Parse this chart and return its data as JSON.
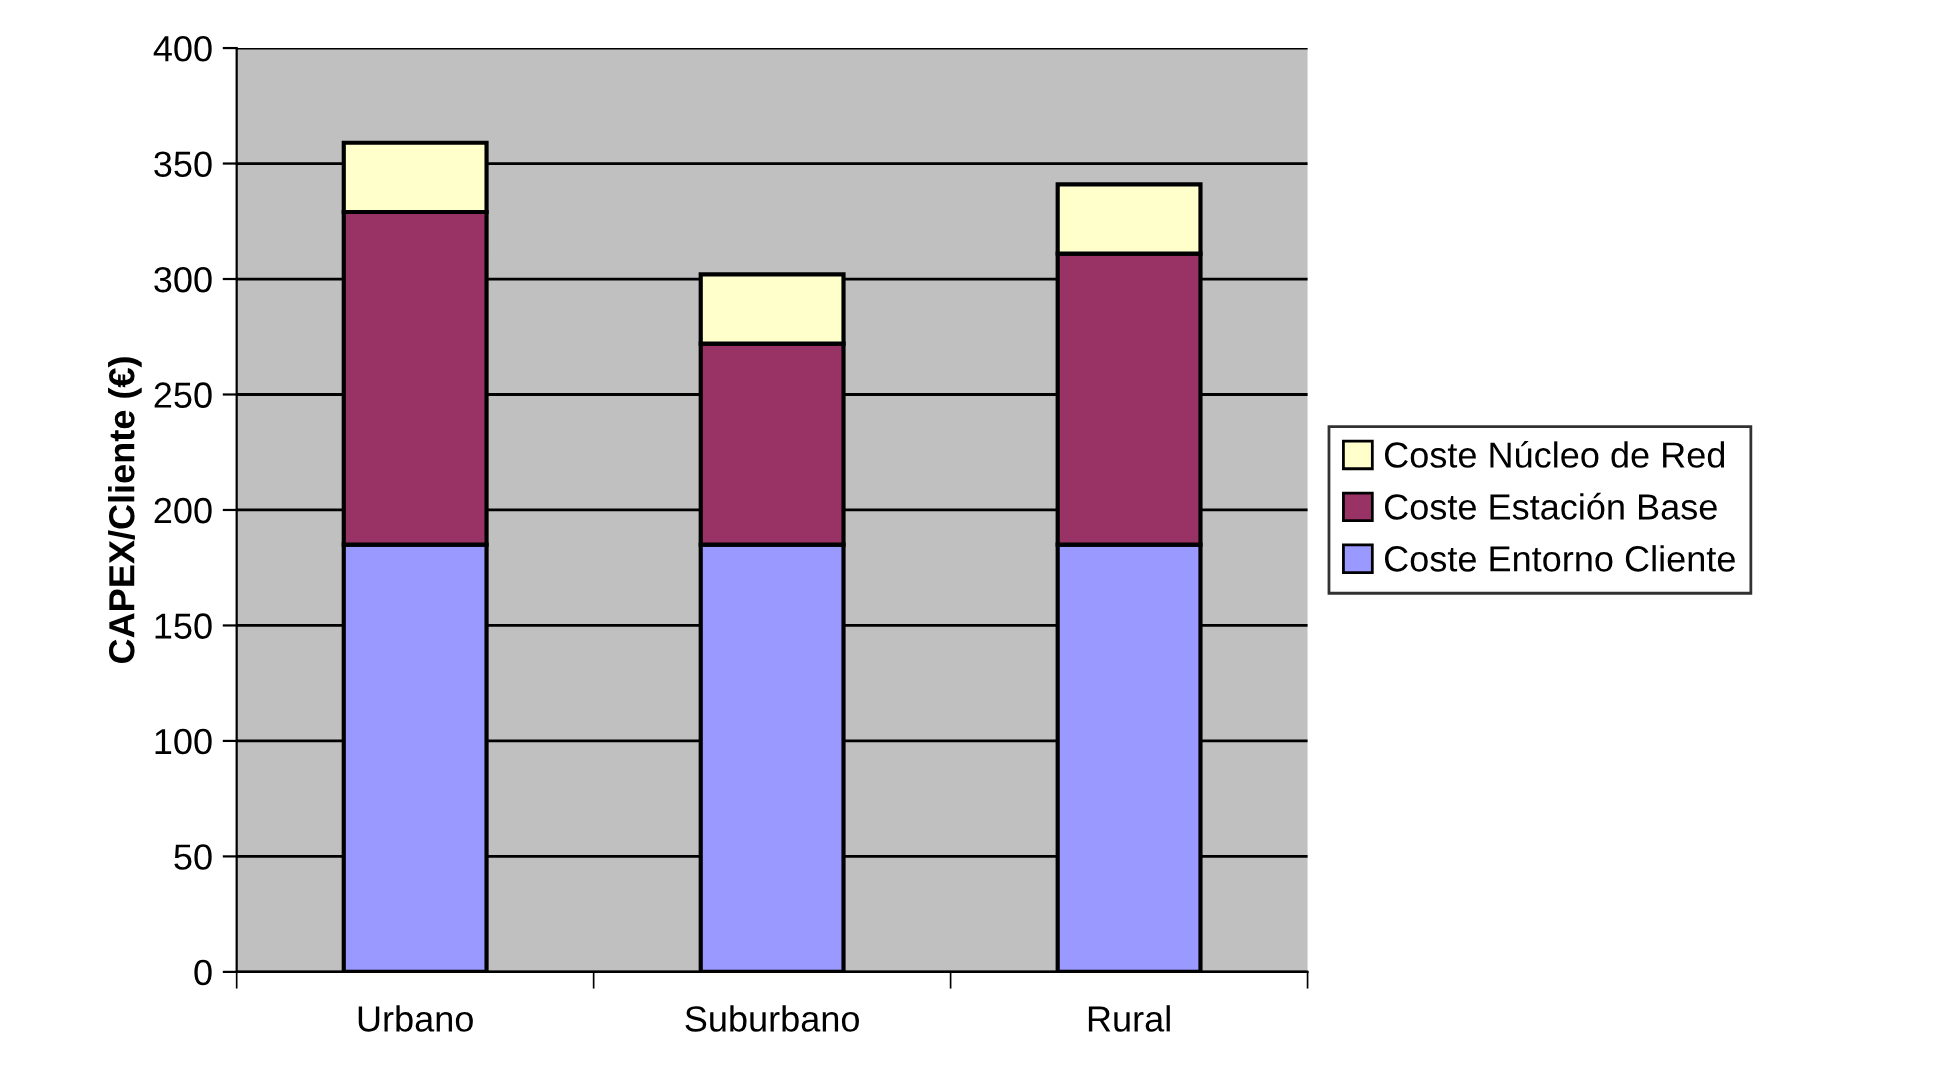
{
  "chart_data": {
    "type": "bar",
    "stacked": true,
    "ylabel": "CAPEX/Cliente (€)",
    "categories": [
      "Urbano",
      "Suburbano",
      "Rural"
    ],
    "series": [
      {
        "name": "Coste Entorno Cliente",
        "color": "#9999ff",
        "values": [
          185,
          185,
          185
        ]
      },
      {
        "name": "Coste Estación Base",
        "color": "#993366",
        "values": [
          144,
          87,
          126
        ]
      },
      {
        "name": "Coste Núcleo de Red",
        "color": "#ffffcc",
        "values": [
          30,
          30,
          30
        ]
      }
    ],
    "ylim": [
      0,
      400
    ],
    "yticks": [
      0,
      50,
      100,
      150,
      200,
      250,
      300,
      350,
      400
    ],
    "grid": "y",
    "legend": "right"
  }
}
